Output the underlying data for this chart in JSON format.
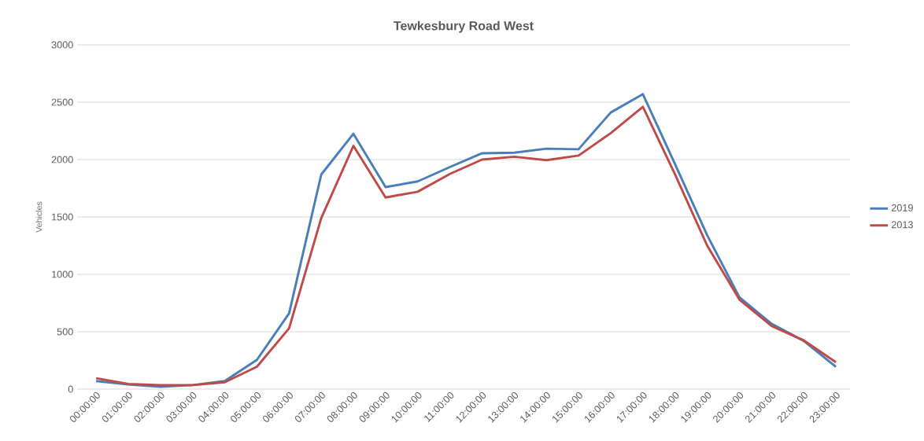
{
  "chart_data": {
    "type": "line",
    "title": "Tewkesbury Road West",
    "ylabel": "Vehicles",
    "categories": [
      "00:00:00",
      "01:00:00",
      "02:00:00",
      "03:00:00",
      "04:00:00",
      "05:00:00",
      "06:00:00",
      "07:00:00",
      "08:00:00",
      "09:00:00",
      "10:00:00",
      "11:00:00",
      "12:00:00",
      "13:00:00",
      "14:00:00",
      "15:00:00",
      "16:00:00",
      "17:00:00",
      "18:00:00",
      "19:00:00",
      "20:00:00",
      "21:00:00",
      "22:00:00",
      "23:00:00"
    ],
    "series": [
      {
        "name": "2019",
        "color": "#4a7ebb",
        "values": [
          70,
          40,
          20,
          35,
          70,
          255,
          660,
          1870,
          2225,
          1760,
          1810,
          1935,
          2055,
          2060,
          2095,
          2090,
          2410,
          2570,
          1960,
          1340,
          800,
          570,
          420,
          195
        ]
      },
      {
        "name": "2013",
        "color": "#be4b48",
        "values": [
          95,
          45,
          35,
          35,
          60,
          195,
          530,
          1490,
          2120,
          1670,
          1720,
          1875,
          2000,
          2025,
          1995,
          2035,
          2230,
          2460,
          1870,
          1250,
          780,
          550,
          425,
          235
        ]
      }
    ],
    "ylim": [
      0,
      3000
    ],
    "yticks": [
      0,
      500,
      1000,
      1500,
      2000,
      2500,
      3000
    ],
    "grid": "y",
    "legend": "right",
    "marker": "none",
    "line_style": "solid"
  }
}
